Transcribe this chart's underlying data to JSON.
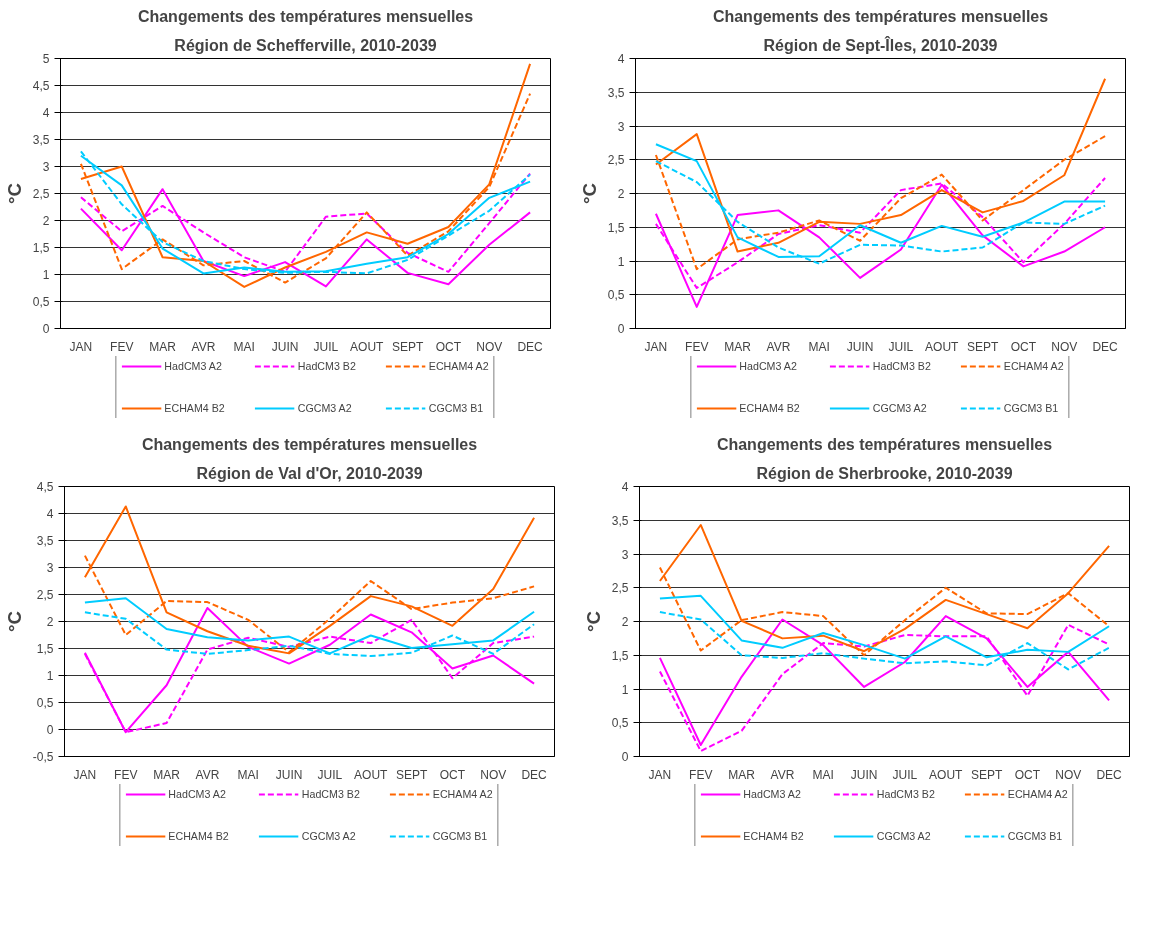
{
  "chart_data": [
    {
      "type": "line",
      "title": "Changements des températures mensuelles",
      "subtitle": "Région de Schefferville, 2010-2039",
      "ylabel": "°C",
      "categories": [
        "JAN",
        "FEV",
        "MAR",
        "AVR",
        "MAI",
        "JUIN",
        "JUIL",
        "AOUT",
        "SEPT",
        "OCT",
        "NOV",
        "DEC"
      ],
      "ylim": [
        0,
        5
      ],
      "yticks": [
        0,
        {
          "value": 0.5,
          "label": "0,5"
        },
        1,
        {
          "value": 1.5,
          "label": "1,5"
        },
        2,
        {
          "value": 2.5,
          "label": "2,5"
        },
        3,
        {
          "value": 3.5,
          "label": "3,5"
        },
        4,
        {
          "value": 4.5,
          "label": "4,5"
        },
        5
      ],
      "grid": "y",
      "legend": "bottom",
      "marker": "none",
      "series": [
        {
          "name": "HadCM3 A2",
          "color": "#ff00ff",
          "line_style": "solid",
          "values": [
            2.22,
            1.45,
            2.58,
            1.25,
            0.97,
            1.23,
            0.78,
            1.65,
            1.03,
            0.82,
            1.55,
            2.15
          ]
        },
        {
          "name": "HadCM3 B2",
          "color": "#ff00ff",
          "line_style": "dashed",
          "values": [
            2.43,
            1.8,
            2.27,
            1.78,
            1.32,
            1.05,
            2.07,
            2.13,
            1.4,
            1.05,
            1.95,
            2.87
          ]
        },
        {
          "name": "ECHAM4 A2",
          "color": "#ff6600",
          "line_style": "dashed",
          "values": [
            3.05,
            1.1,
            1.65,
            1.17,
            1.25,
            0.85,
            1.3,
            2.15,
            1.35,
            1.8,
            2.62,
            4.35
          ]
        },
        {
          "name": "ECHAM4 B2",
          "color": "#ff6600",
          "line_style": "solid",
          "values": [
            2.77,
            3.0,
            1.32,
            1.25,
            0.77,
            1.13,
            1.42,
            1.78,
            1.57,
            1.88,
            2.67,
            4.9
          ]
        },
        {
          "name": "CGCM3 A2",
          "color": "#00ccff",
          "line_style": "solid",
          "values": [
            3.2,
            2.65,
            1.48,
            1.02,
            1.13,
            1.05,
            1.06,
            1.2,
            1.32,
            1.75,
            2.42,
            2.72
          ]
        },
        {
          "name": "CGCM3 B1",
          "color": "#00ccff",
          "line_style": "dashed",
          "values": [
            3.28,
            2.3,
            1.6,
            1.25,
            1.1,
            1.03,
            1.05,
            1.02,
            1.27,
            1.72,
            2.18,
            2.85
          ]
        }
      ]
    },
    {
      "type": "line",
      "title": "Changements des températures mensuelles",
      "subtitle": "Région de Sept-Îles, 2010-2039",
      "ylabel": "°C",
      "categories": [
        "JAN",
        "FEV",
        "MAR",
        "AVR",
        "MAI",
        "JUIN",
        "JUIL",
        "AOUT",
        "SEPT",
        "OCT",
        "NOV",
        "DEC"
      ],
      "ylim": [
        0,
        4
      ],
      "yticks": [
        0,
        {
          "value": 0.5,
          "label": "0,5"
        },
        1,
        {
          "value": 1.5,
          "label": "1,5"
        },
        2,
        {
          "value": 2.5,
          "label": "2,5"
        },
        3,
        {
          "value": 3.5,
          "label": "3,5"
        },
        4
      ],
      "grid": "y",
      "legend": "bottom",
      "marker": "none",
      "series": [
        {
          "name": "HadCM3 A2",
          "color": "#ff00ff",
          "line_style": "solid",
          "values": [
            1.7,
            0.32,
            1.68,
            1.75,
            1.35,
            0.75,
            1.17,
            2.13,
            1.38,
            0.92,
            1.14,
            1.5
          ]
        },
        {
          "name": "HadCM3 B2",
          "color": "#ff00ff",
          "line_style": "dashed",
          "values": [
            1.55,
            0.6,
            0.98,
            1.4,
            1.53,
            1.42,
            2.05,
            2.15,
            1.65,
            0.98,
            1.55,
            2.23
          ]
        },
        {
          "name": "ECHAM4 A2",
          "color": "#ff6600",
          "line_style": "dashed",
          "values": [
            2.57,
            0.88,
            1.32,
            1.42,
            1.6,
            1.3,
            1.93,
            2.28,
            1.6,
            2.05,
            2.5,
            2.85
          ]
        },
        {
          "name": "ECHAM4 B2",
          "color": "#ff6600",
          "line_style": "solid",
          "values": [
            2.43,
            2.88,
            1.14,
            1.27,
            1.58,
            1.55,
            1.68,
            2.05,
            1.72,
            1.89,
            2.27,
            3.7
          ]
        },
        {
          "name": "CGCM3 A2",
          "color": "#00ccff",
          "line_style": "solid",
          "values": [
            2.73,
            2.48,
            1.35,
            1.06,
            1.07,
            1.53,
            1.27,
            1.52,
            1.36,
            1.57,
            1.88,
            1.88
          ]
        },
        {
          "name": "CGCM3 B1",
          "color": "#00ccff",
          "line_style": "dashed",
          "values": [
            2.48,
            2.17,
            1.58,
            1.2,
            0.96,
            1.24,
            1.23,
            1.14,
            1.2,
            1.57,
            1.55,
            1.82
          ]
        }
      ]
    },
    {
      "type": "line",
      "title": "Changements des températures mensuelles",
      "subtitle": "Région de Val d'Or, 2010-2039",
      "ylabel": "°C",
      "categories": [
        "JAN",
        "FEV",
        "MAR",
        "AVR",
        "MAI",
        "JUIN",
        "JUIL",
        "AOUT",
        "SEPT",
        "OCT",
        "NOV",
        "DEC"
      ],
      "ylim": [
        -0.5,
        4.5
      ],
      "yticks": [
        {
          "value": -0.5,
          "label": "-0,5"
        },
        0,
        {
          "value": 0.5,
          "label": "0,5"
        },
        1,
        {
          "value": 1.5,
          "label": "1,5"
        },
        2,
        {
          "value": 2.5,
          "label": "2,5"
        },
        3,
        {
          "value": 3.5,
          "label": "3,5"
        },
        4,
        {
          "value": 4.5,
          "label": "4,5"
        }
      ],
      "grid": "y",
      "legend": "bottom",
      "marker": "none",
      "series": [
        {
          "name": "HadCM3 A2",
          "color": "#ff00ff",
          "line_style": "solid",
          "values": [
            1.42,
            -0.05,
            0.82,
            2.25,
            1.53,
            1.22,
            1.57,
            2.13,
            1.8,
            1.13,
            1.37,
            0.85
          ]
        },
        {
          "name": "HadCM3 B2",
          "color": "#ff00ff",
          "line_style": "dashed",
          "values": [
            1.4,
            -0.05,
            0.12,
            1.48,
            1.7,
            1.53,
            1.72,
            1.6,
            2.03,
            0.95,
            1.6,
            1.72
          ]
        },
        {
          "name": "ECHAM4 A2",
          "color": "#ff6600",
          "line_style": "dashed",
          "values": [
            3.22,
            1.75,
            2.38,
            2.36,
            2.03,
            1.43,
            2.05,
            2.75,
            2.23,
            2.35,
            2.43,
            2.65
          ]
        },
        {
          "name": "ECHAM4 B2",
          "color": "#ff6600",
          "line_style": "solid",
          "values": [
            2.82,
            4.13,
            2.17,
            1.82,
            1.55,
            1.41,
            1.92,
            2.47,
            2.28,
            1.92,
            2.6,
            3.92
          ]
        },
        {
          "name": "CGCM3 A2",
          "color": "#00ccff",
          "line_style": "solid",
          "values": [
            2.35,
            2.43,
            1.86,
            1.71,
            1.65,
            1.72,
            1.41,
            1.74,
            1.51,
            1.58,
            1.65,
            2.18
          ]
        },
        {
          "name": "CGCM3 B1",
          "color": "#00ccff",
          "line_style": "dashed",
          "values": [
            2.17,
            2.05,
            1.48,
            1.4,
            1.47,
            1.55,
            1.4,
            1.36,
            1.42,
            1.74,
            1.4,
            1.95
          ]
        }
      ]
    },
    {
      "type": "line",
      "title": "Changements des températures mensuelles",
      "subtitle": "Région de Sherbrooke, 2010-2039",
      "ylabel": "°C",
      "categories": [
        "JAN",
        "FEV",
        "MAR",
        "AVR",
        "MAI",
        "JUIN",
        "JUIL",
        "AOUT",
        "SEPT",
        "OCT",
        "NOV",
        "DEC"
      ],
      "ylim": [
        0,
        4
      ],
      "yticks": [
        0,
        {
          "value": 0.5,
          "label": "0,5"
        },
        1,
        {
          "value": 1.5,
          "label": "1,5"
        },
        2,
        {
          "value": 2.5,
          "label": "2,5"
        },
        3,
        {
          "value": 3.5,
          "label": "3,5"
        },
        4
      ],
      "grid": "y",
      "legend": "bottom",
      "marker": "none",
      "series": [
        {
          "name": "HadCM3 A2",
          "color": "#ff00ff",
          "line_style": "solid",
          "values": [
            1.46,
            0.17,
            1.18,
            2.03,
            1.65,
            1.03,
            1.4,
            2.08,
            1.75,
            1.03,
            1.55,
            0.83
          ]
        },
        {
          "name": "HadCM3 B2",
          "color": "#ff00ff",
          "line_style": "dashed",
          "values": [
            1.26,
            0.08,
            0.38,
            1.22,
            1.68,
            1.63,
            1.8,
            1.78,
            1.78,
            0.9,
            1.95,
            1.66
          ]
        },
        {
          "name": "ECHAM4 A2",
          "color": "#ff6600",
          "line_style": "dashed",
          "values": [
            2.8,
            1.57,
            2.02,
            2.14,
            2.08,
            1.5,
            2.02,
            2.5,
            2.12,
            2.11,
            2.42,
            1.93
          ]
        },
        {
          "name": "ECHAM4 B2",
          "color": "#ff6600",
          "line_style": "solid",
          "values": [
            2.6,
            3.43,
            2.01,
            1.75,
            1.79,
            1.56,
            1.89,
            2.32,
            2.11,
            1.9,
            2.42,
            3.12
          ]
        },
        {
          "name": "CGCM3 A2",
          "color": "#00ccff",
          "line_style": "solid",
          "values": [
            2.34,
            2.38,
            1.72,
            1.61,
            1.83,
            1.65,
            1.45,
            1.78,
            1.47,
            1.58,
            1.55,
            1.93
          ]
        },
        {
          "name": "CGCM3 B1",
          "color": "#00ccff",
          "line_style": "dashed",
          "values": [
            2.14,
            2.03,
            1.5,
            1.46,
            1.53,
            1.45,
            1.38,
            1.41,
            1.35,
            1.68,
            1.29,
            1.61
          ]
        }
      ]
    }
  ]
}
